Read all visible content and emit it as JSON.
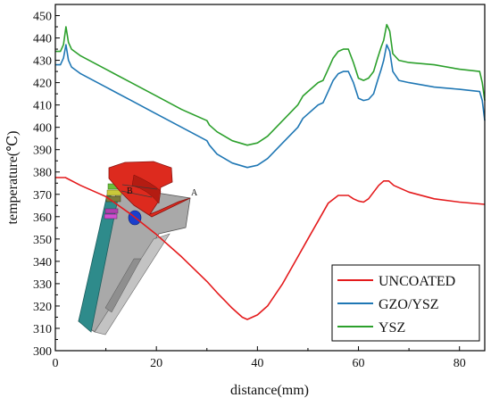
{
  "chart_data": {
    "type": "line",
    "title": "",
    "xlabel": "distance(mm)",
    "ylabel": "temperature(℃)",
    "xlim": [
      0,
      85
    ],
    "ylim": [
      300,
      455
    ],
    "xticks": [
      "0",
      "20",
      "40",
      "60",
      "80"
    ],
    "yticks": [
      "300",
      "310",
      "320",
      "330",
      "340",
      "350",
      "360",
      "370",
      "380",
      "390",
      "400",
      "410",
      "420",
      "430",
      "440",
      "450"
    ],
    "grid": false,
    "legend_position": "bottom-right",
    "inset_annotations": [
      "A",
      "B"
    ],
    "series": [
      {
        "name": "UNCOATED",
        "color": "#e41a1c",
        "x": [
          0,
          2,
          5,
          10,
          15,
          20,
          25,
          30,
          32,
          35,
          37,
          38,
          40,
          42,
          45,
          48,
          50,
          52,
          54,
          56,
          58,
          59,
          60,
          61,
          62,
          63,
          64,
          65,
          66,
          67,
          70,
          75,
          80,
          85
        ],
        "y": [
          377.5,
          377.5,
          374,
          369,
          361,
          352,
          342,
          331,
          326,
          319,
          315,
          314,
          316,
          320,
          330,
          342,
          350,
          358,
          366,
          369.5,
          369.5,
          368,
          367,
          366.5,
          368,
          371,
          374,
          376,
          376,
          374,
          371,
          368,
          366.5,
          365.5
        ]
      },
      {
        "name": "GZO/YSZ",
        "color": "#1f77b4",
        "x": [
          0,
          1,
          1.6,
          2.1,
          2.6,
          3.2,
          5,
          10,
          15,
          20,
          25,
          30,
          30.5,
          32,
          35,
          38,
          40,
          42,
          45,
          48,
          49,
          50,
          52,
          53,
          54,
          55,
          56,
          57,
          58,
          59,
          60,
          61,
          62,
          63,
          63.8,
          64.5,
          65,
          65.6,
          66.2,
          66.8,
          68,
          70,
          75,
          80,
          84,
          84.5,
          85
        ],
        "y": [
          428,
          428,
          431,
          437,
          430,
          427,
          424,
          418,
          412,
          406,
          400,
          394,
          392,
          388,
          384,
          382,
          383,
          386,
          393,
          400,
          404,
          406,
          410,
          411,
          416,
          421,
          424,
          425,
          425,
          420,
          413,
          412,
          412.5,
          415,
          421,
          426,
          430,
          437,
          434,
          425,
          421,
          420,
          418,
          417,
          416,
          412,
          403
        ]
      },
      {
        "name": "YSZ",
        "color": "#2ca02c",
        "x": [
          0,
          1,
          1.6,
          2.1,
          2.6,
          3.2,
          5,
          10,
          15,
          20,
          25,
          30,
          30.5,
          32,
          35,
          38,
          40,
          42,
          45,
          48,
          49,
          50,
          52,
          53,
          54,
          55,
          56,
          57,
          58,
          59,
          60,
          61,
          62,
          63,
          63.8,
          64.5,
          65,
          65.6,
          66.2,
          66.8,
          68,
          70,
          75,
          80,
          84,
          84.5,
          85
        ],
        "y": [
          434,
          434,
          437,
          445,
          438,
          435,
          432,
          426,
          420,
          414,
          408,
          403,
          401,
          398,
          394,
          392,
          393,
          396,
          403,
          410,
          414,
          416,
          420,
          421,
          426,
          431,
          434,
          435,
          435,
          429,
          422,
          421,
          422,
          425,
          431,
          436,
          439,
          446,
          443,
          433,
          430,
          429,
          428,
          426,
          425,
          420,
          412
        ]
      }
    ]
  }
}
